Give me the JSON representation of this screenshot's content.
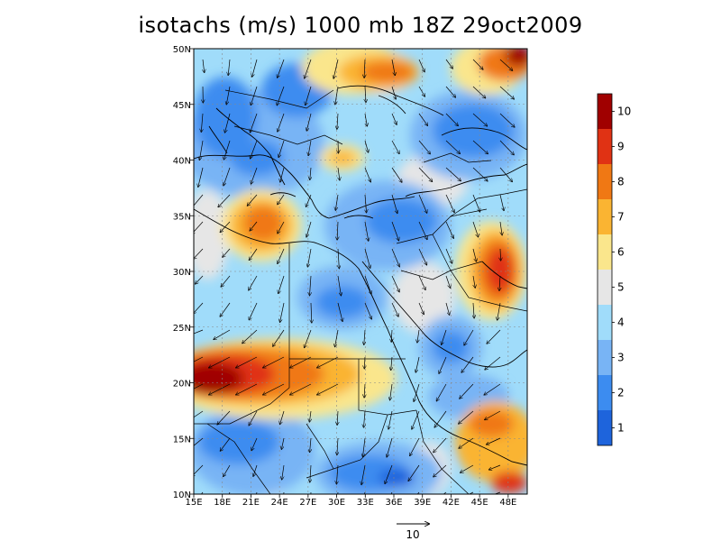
{
  "title": "isotachs (m/s) 1000 mb 18Z 29oct2009",
  "map": {
    "lon_range": [
      15,
      50
    ],
    "lat_range": [
      10,
      50
    ],
    "lon_ticks": [
      "15E",
      "18E",
      "21E",
      "24E",
      "27E",
      "30E",
      "33E",
      "36E",
      "39E",
      "42E",
      "45E",
      "48E"
    ],
    "lat_ticks": [
      "10N",
      "15N",
      "20N",
      "25N",
      "30N",
      "35N",
      "40N",
      "45N",
      "50N"
    ],
    "grid": "dashed"
  },
  "colorbar": {
    "labels": [
      "1",
      "2",
      "3",
      "4",
      "5",
      "6",
      "7",
      "8",
      "9",
      "10"
    ],
    "colors": [
      "#1e64dc",
      "#3c8cf0",
      "#78b4f5",
      "#a0dcfa",
      "#e6e6e6",
      "#fae68c",
      "#fab432",
      "#f07814",
      "#e03214",
      "#a00000"
    ]
  },
  "vector_reference": {
    "label": "10",
    "magnitude": 10
  }
}
